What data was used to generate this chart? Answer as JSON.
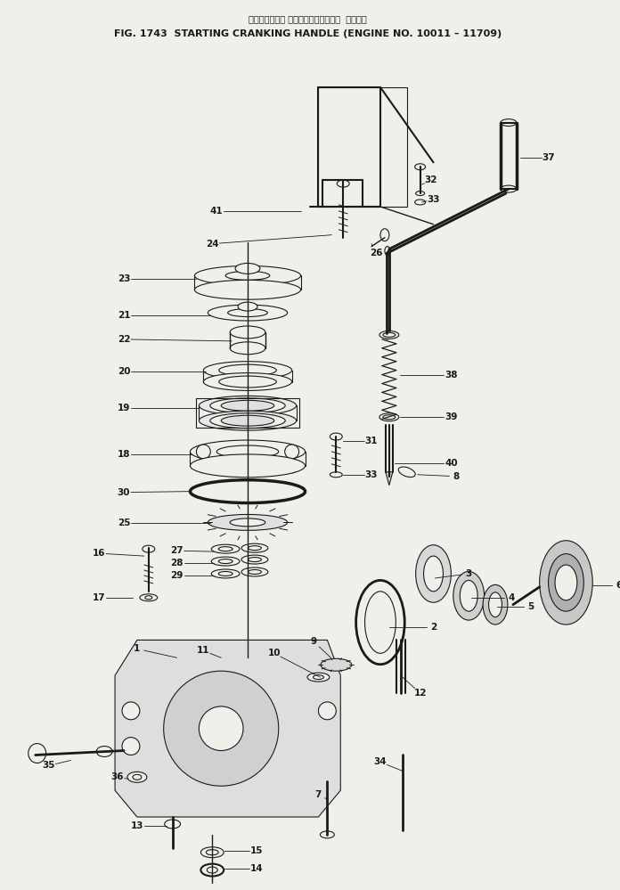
{
  "title_jp": "スターティング クランキングハンドル  適用号機",
  "title_en": "FIG. 1743  STARTING CRANKING HANDLE (ENGINE NO. 10011 – 11709)",
  "bg_color": "#f0efea",
  "line_color": "#1a1a1a",
  "text_color": "#1a1a1a",
  "fig_width": 6.96,
  "fig_height": 9.99,
  "dpi": 100
}
